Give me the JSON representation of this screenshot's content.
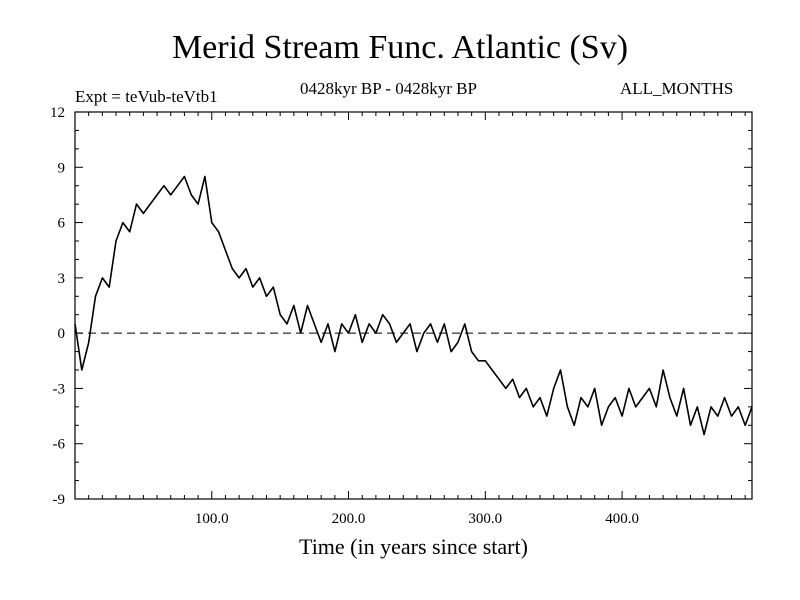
{
  "header": {
    "title": "Merid Stream Func. Atlantic (Sv)",
    "expt": "Expt = teVub-teVtb1",
    "period": "0428kyr BP - 0428kyr BP",
    "months": "ALL_MONTHS"
  },
  "chart_data": {
    "type": "line",
    "title": "Merid Stream Func. Atlantic (Sv)",
    "xlabel": "Time (in years since start)",
    "ylabel": "",
    "xlim": [
      0,
      495
    ],
    "ylim": [
      -9,
      12
    ],
    "x_ticks": [
      "100.0",
      "200.0",
      "300.0",
      "400.0"
    ],
    "y_ticks": [
      "12",
      "9",
      "6",
      "3",
      "0",
      "-3",
      "-6",
      "-9"
    ],
    "reference_line": {
      "y": 0,
      "style": "dashed"
    },
    "grid": false,
    "series": [
      {
        "color": "#000000",
        "x": [
          0,
          5,
          10,
          15,
          20,
          25,
          30,
          35,
          40,
          45,
          50,
          55,
          60,
          65,
          70,
          75,
          80,
          85,
          90,
          95,
          100,
          105,
          110,
          115,
          120,
          125,
          130,
          135,
          140,
          145,
          150,
          155,
          160,
          165,
          170,
          175,
          180,
          185,
          190,
          195,
          200,
          205,
          210,
          215,
          220,
          225,
          230,
          235,
          240,
          245,
          250,
          255,
          260,
          265,
          270,
          275,
          280,
          285,
          290,
          295,
          300,
          305,
          310,
          315,
          320,
          325,
          330,
          335,
          340,
          345,
          350,
          355,
          360,
          365,
          370,
          375,
          380,
          385,
          390,
          395,
          400,
          405,
          410,
          415,
          420,
          425,
          430,
          435,
          440,
          445,
          450,
          455,
          460,
          465,
          470,
          475,
          480,
          485,
          490,
          495
        ],
        "values": [
          0.5,
          -2.0,
          -0.5,
          2.0,
          3.0,
          2.5,
          5.0,
          6.0,
          5.5,
          7.0,
          6.5,
          7.0,
          7.5,
          8.0,
          7.5,
          8.0,
          8.5,
          7.5,
          7.0,
          8.5,
          6.0,
          5.5,
          4.5,
          3.5,
          3.0,
          3.5,
          2.5,
          3.0,
          2.0,
          2.5,
          1.0,
          0.5,
          1.5,
          0.0,
          1.5,
          0.5,
          -0.5,
          0.5,
          -1.0,
          0.5,
          0.0,
          1.0,
          -0.5,
          0.5,
          0.0,
          1.0,
          0.5,
          -0.5,
          0.0,
          0.5,
          -1.0,
          0.0,
          0.5,
          -0.5,
          0.5,
          -1.0,
          -0.5,
          0.5,
          -1.0,
          -1.5,
          -1.5,
          -2.0,
          -2.5,
          -3.0,
          -2.5,
          -3.5,
          -3.0,
          -4.0,
          -3.5,
          -4.5,
          -3.0,
          -2.0,
          -4.0,
          -5.0,
          -3.5,
          -4.0,
          -3.0,
          -5.0,
          -4.0,
          -3.5,
          -4.5,
          -3.0,
          -4.0,
          -3.5,
          -3.0,
          -4.0,
          -2.0,
          -3.5,
          -4.5,
          -3.0,
          -5.0,
          -4.0,
          -5.5,
          -4.0,
          -4.5,
          -3.5,
          -4.5,
          -4.0,
          -5.0,
          -4.0
        ]
      }
    ]
  }
}
